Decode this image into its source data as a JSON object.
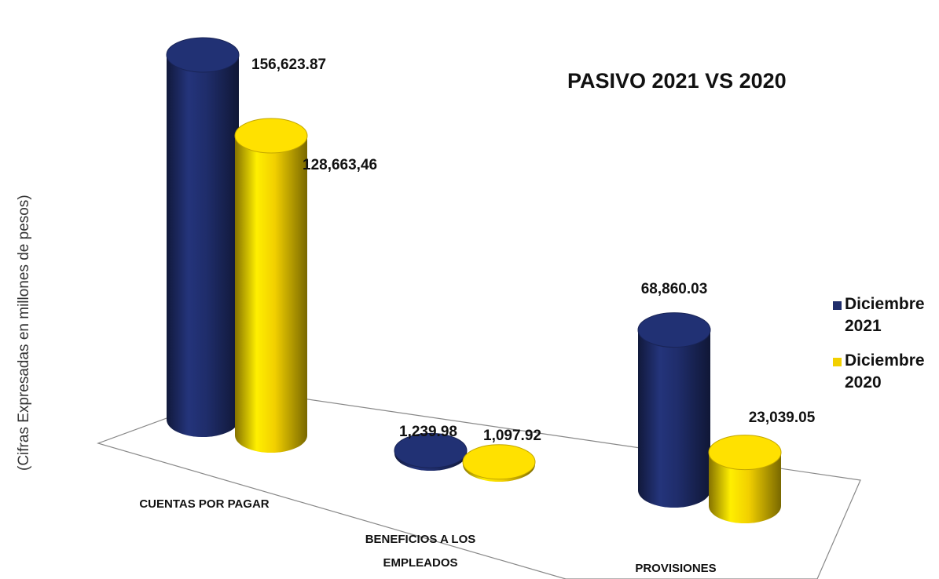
{
  "chart_data": {
    "type": "bar3d-cylinder",
    "title": "PASIVO 2021 VS 2020",
    "y_label": "(Cifras Expresadas en millones de pesos)",
    "categories": [
      "CUENTAS POR PAGAR",
      "BENEFICIOS A LOS EMPLEADOS",
      "PROVISIONES"
    ],
    "series": [
      {
        "name": "Diciembre 2021",
        "color": "#1f2d6b",
        "values": [
          156623.87,
          1239.98,
          68860.03
        ],
        "value_labels": [
          "156,623.87",
          "1,239.98",
          "68,860.03"
        ]
      },
      {
        "name": "Diciembre 2020",
        "color": "#f2d000",
        "values": [
          128663.46,
          1097.92,
          23039.05
        ],
        "value_labels": [
          "128,663,46",
          "1,097.92",
          "23,039.05"
        ]
      }
    ],
    "ylim": [
      0,
      160000
    ],
    "legend": "right"
  }
}
